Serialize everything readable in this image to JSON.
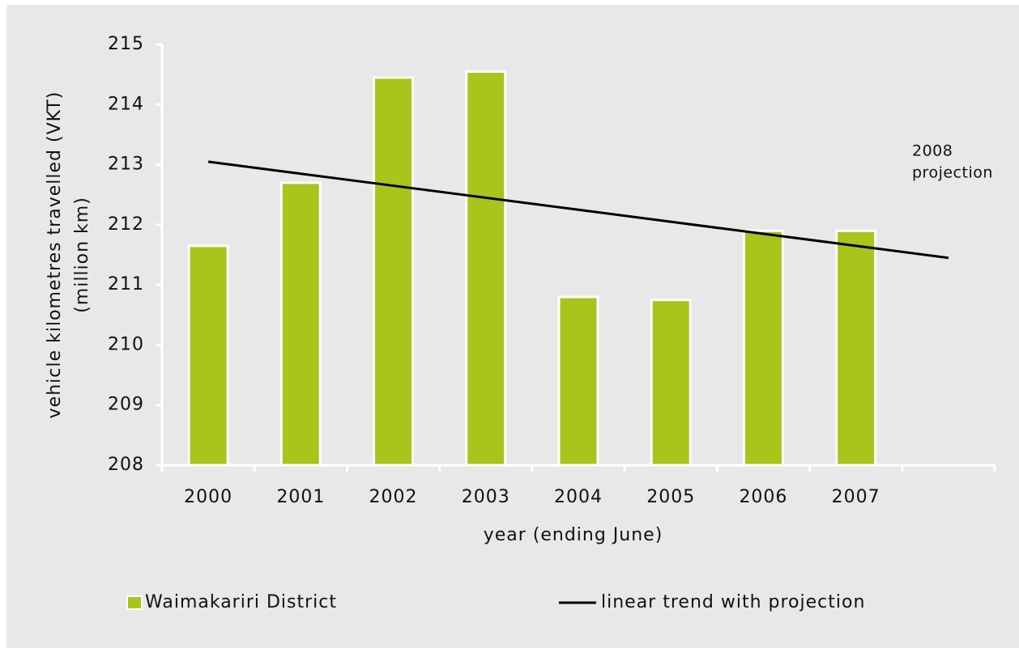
{
  "chart_data": {
    "type": "bar",
    "categories": [
      "2000",
      "2001",
      "2002",
      "2003",
      "2004",
      "2005",
      "2006",
      "2007",
      null
    ],
    "series": [
      {
        "name": "Waimakariri District",
        "color": "#a9c41b",
        "values": [
          211.65,
          212.7,
          214.45,
          214.55,
          210.8,
          210.75,
          211.9,
          211.9,
          null
        ]
      },
      {
        "name": "linear trend with projection",
        "type": "line",
        "color": "#000000",
        "values": [
          213.05,
          212.85,
          212.65,
          212.45,
          212.25,
          212.05,
          211.85,
          211.65,
          211.45
        ]
      }
    ],
    "ylim": [
      208,
      215
    ],
    "yticks": [
      208,
      209,
      210,
      211,
      212,
      213,
      214,
      215
    ],
    "ylabel": [
      "vehicle kilometres travelled (VKT)",
      "(million km)"
    ],
    "xlabel": "year (ending June)",
    "annotation": [
      "2008",
      "projection"
    ],
    "legend": "bottom",
    "grid": false
  }
}
